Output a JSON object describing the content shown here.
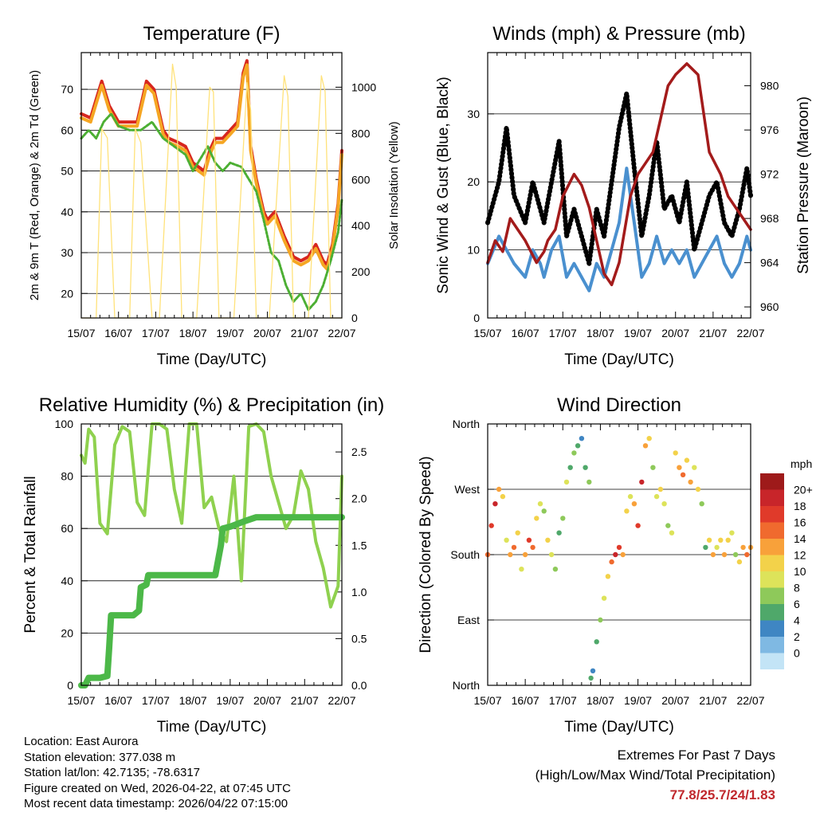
{
  "info": {
    "location": "Location: East Aurora",
    "elevation": "Station elevation: 377.038 m",
    "latlon": "Station lat/lon: 42.7135; -78.6317",
    "created": "Figure created on Wed, 2026-04-22, at 07:45 UTC",
    "recent": "Most recent data timestamp: 2026/04/22 07:15:00"
  },
  "extremes": {
    "title": "Extremes For Past 7 Days",
    "subtitle": "(High/Low/Max Wind/Total Precipitation)",
    "values": "77.8/25.7/24/1.83"
  },
  "colors": {
    "temp_red": "#d7261e",
    "temp_orange": "#f5a623",
    "dewpoint_green": "#4caf33",
    "solar_yellow": "#ffe27a",
    "wind_blue": "#4a90cf",
    "gust_black": "#000000",
    "pressure_maroon": "#a31b1b",
    "rh_lightgreen": "#8fd14f",
    "precip_green": "#4cb848"
  },
  "chart_data": [
    {
      "id": "temperature",
      "type": "line",
      "title": "Temperature (F)",
      "xlabel": "Time (Day/UTC)",
      "ylabel": "2m & 9m T (Red, Orange) & 2m Td (Green)",
      "y2label": "Solar Insolation (Yellow)",
      "x_ticks": [
        "15/07",
        "16/07",
        "17/07",
        "18/07",
        "19/07",
        "20/07",
        "21/07",
        "22/07"
      ],
      "xlim": [
        0,
        7
      ],
      "ylim": [
        14,
        79
      ],
      "y_ticks": [
        20,
        30,
        40,
        50,
        60,
        70
      ],
      "y2lim": [
        0,
        1150
      ],
      "y2_ticks": [
        0,
        200,
        400,
        600,
        800,
        1000
      ],
      "series": [
        {
          "name": "2m T",
          "color": "#d7261e",
          "x": [
            0,
            0.25,
            0.45,
            0.55,
            0.75,
            1,
            1.25,
            1.5,
            1.75,
            1.95,
            2.2,
            2.35,
            2.6,
            2.8,
            3,
            3.3,
            3.45,
            3.6,
            3.8,
            4,
            4.2,
            4.35,
            4.45,
            4.55,
            4.7,
            4.9,
            5,
            5.2,
            5.45,
            5.7,
            5.9,
            6.1,
            6.3,
            6.5,
            6.6,
            6.75,
            6.9,
            7
          ],
          "y": [
            64,
            63,
            69,
            72,
            66,
            62,
            62,
            62,
            72,
            70,
            60,
            58,
            57,
            56,
            52,
            50,
            55,
            58,
            58,
            60,
            62,
            74,
            77,
            56,
            48,
            40,
            38,
            40,
            34,
            29,
            28,
            29,
            32,
            28,
            27,
            32,
            42,
            55
          ]
        },
        {
          "name": "9m T",
          "color": "#f5a623",
          "x": [
            0,
            0.25,
            0.45,
            0.55,
            0.75,
            1,
            1.25,
            1.5,
            1.75,
            1.95,
            2.2,
            2.35,
            2.6,
            2.8,
            3,
            3.3,
            3.45,
            3.6,
            3.8,
            4,
            4.2,
            4.35,
            4.45,
            4.55,
            4.7,
            4.9,
            5,
            5.2,
            5.45,
            5.7,
            5.9,
            6.1,
            6.3,
            6.5,
            6.6,
            6.75,
            6.9,
            7
          ],
          "y": [
            63,
            62,
            68,
            71,
            65,
            61,
            61,
            61,
            71,
            69,
            59,
            57,
            56,
            55,
            51,
            49,
            54,
            57,
            57,
            59,
            61,
            73,
            76,
            55,
            47,
            39,
            37,
            39,
            33,
            28,
            27,
            28,
            31,
            27,
            26,
            31,
            41,
            54
          ]
        },
        {
          "name": "2m Td",
          "color": "#4caf33",
          "x": [
            0,
            0.2,
            0.4,
            0.6,
            0.8,
            1,
            1.3,
            1.6,
            1.9,
            2.2,
            2.5,
            2.8,
            3,
            3.2,
            3.4,
            3.6,
            3.8,
            4.0,
            4.3,
            4.5,
            4.7,
            4.9,
            5.1,
            5.3,
            5.5,
            5.7,
            5.9,
            6.1,
            6.3,
            6.5,
            6.7,
            6.9,
            7
          ],
          "y": [
            58,
            60,
            58,
            62,
            64,
            61,
            60,
            60,
            62,
            58,
            56,
            54,
            50,
            53,
            56,
            52,
            50,
            52,
            51,
            48,
            45,
            38,
            30,
            28,
            22,
            18,
            20,
            16,
            18,
            22,
            28,
            35,
            43
          ]
        },
        {
          "name": "Solar Insolation",
          "color": "#ffe27a",
          "axis": "y2",
          "x": [
            0,
            0.4,
            0.55,
            0.7,
            0.9,
            1.3,
            1.45,
            1.6,
            1.9,
            2.1,
            2.45,
            2.55,
            2.7,
            2.9,
            3.1,
            3.45,
            3.55,
            3.7,
            3.9,
            4.1,
            4.45,
            4.55,
            4.7,
            4.9,
            5.05,
            5.45,
            5.55,
            5.7,
            5.9,
            6.1,
            6.45,
            6.55,
            6.7,
            6.9,
            7
          ],
          "y": [
            0,
            0,
            820,
            780,
            0,
            0,
            820,
            760,
            0,
            0,
            1100,
            1000,
            0,
            0,
            0,
            1000,
            980,
            0,
            0,
            0,
            1020,
            900,
            0,
            0,
            0,
            1050,
            960,
            0,
            0,
            0,
            1050,
            980,
            0,
            0,
            0
          ]
        }
      ]
    },
    {
      "id": "winds",
      "type": "line",
      "title": "Winds (mph) & Pressure (mb)",
      "xlabel": "Time (Day/UTC)",
      "ylabel": "Sonic Wind & Gust (Blue, Black)",
      "y2label": "Station Pressure (Maroon)",
      "x_ticks": [
        "15/07",
        "16/07",
        "17/07",
        "18/07",
        "19/07",
        "20/07",
        "21/07",
        "22/07"
      ],
      "xlim": [
        0,
        7
      ],
      "ylim": [
        0,
        39
      ],
      "y_ticks": [
        0,
        10,
        20,
        30
      ],
      "y2lim": [
        959,
        983
      ],
      "y2_ticks": [
        960,
        964,
        968,
        972,
        976,
        980
      ],
      "series": [
        {
          "name": "Gust",
          "color": "#000000",
          "x": [
            0,
            0.3,
            0.5,
            0.7,
            1,
            1.2,
            1.4,
            1.5,
            1.7,
            1.9,
            2.1,
            2.3,
            2.5,
            2.7,
            2.9,
            3.1,
            3.3,
            3.5,
            3.7,
            3.9,
            4.1,
            4.3,
            4.5,
            4.7,
            4.9,
            5.1,
            5.3,
            5.5,
            5.7,
            5.9,
            6.1,
            6.3,
            6.5,
            6.7,
            6.9,
            7
          ],
          "y": [
            14,
            20,
            28,
            18,
            14,
            20,
            16,
            14,
            20,
            26,
            12,
            16,
            12,
            8,
            16,
            12,
            20,
            28,
            33,
            22,
            12,
            18,
            26,
            16,
            18,
            14,
            20,
            10,
            14,
            18,
            20,
            14,
            12,
            16,
            22,
            18
          ]
        },
        {
          "name": "Wind",
          "color": "#4a90cf",
          "x": [
            0,
            0.3,
            0.5,
            0.7,
            1,
            1.2,
            1.4,
            1.5,
            1.7,
            1.9,
            2.1,
            2.3,
            2.5,
            2.7,
            2.9,
            3.1,
            3.3,
            3.5,
            3.7,
            3.9,
            4.1,
            4.3,
            4.5,
            4.7,
            4.9,
            5.1,
            5.3,
            5.5,
            5.7,
            5.9,
            6.1,
            6.3,
            6.5,
            6.7,
            6.9,
            7
          ],
          "y": [
            8,
            12,
            10,
            8,
            6,
            10,
            8,
            6,
            10,
            12,
            6,
            8,
            6,
            4,
            8,
            6,
            10,
            14,
            22,
            14,
            6,
            8,
            12,
            8,
            10,
            8,
            10,
            6,
            8,
            10,
            12,
            8,
            6,
            8,
            12,
            10
          ]
        },
        {
          "name": "Pressure",
          "color": "#a31b1b",
          "axis": "y2",
          "x": [
            0,
            0.2,
            0.4,
            0.6,
            0.8,
            1,
            1.3,
            1.5,
            1.6,
            1.8,
            2.0,
            2.3,
            2.5,
            2.7,
            2.9,
            3.1,
            3.3,
            3.5,
            3.8,
            4.0,
            4.2,
            4.4,
            4.6,
            4.8,
            5.0,
            5.3,
            5.6,
            5.9,
            6.2,
            6.4,
            6.6,
            6.8,
            7
          ],
          "y": [
            964,
            966,
            965,
            968,
            967,
            966,
            964,
            965,
            966,
            967,
            970,
            972,
            971,
            969,
            966,
            963,
            962,
            964,
            970,
            972,
            973,
            974,
            977,
            980,
            981,
            982,
            981,
            974,
            972,
            970,
            969,
            968,
            967
          ]
        }
      ]
    },
    {
      "id": "humidity",
      "type": "line",
      "title": "Relative Humidity (%) & Precipitation (in)",
      "xlabel": "Time (Day/UTC)",
      "ylabel": "Percent & Total Rainfall",
      "x_ticks": [
        "15/07",
        "16/07",
        "17/07",
        "18/07",
        "19/07",
        "20/07",
        "21/07",
        "22/07"
      ],
      "xlim": [
        0,
        7
      ],
      "ylim": [
        0,
        100
      ],
      "y_ticks": [
        0,
        20,
        40,
        60,
        80,
        100
      ],
      "y2lim": [
        0,
        2.8
      ],
      "y2_ticks": [
        0.0,
        0.5,
        1.0,
        1.5,
        2.0,
        2.5
      ],
      "series": [
        {
          "name": "RH",
          "color": "#8fd14f",
          "x": [
            0,
            0.1,
            0.2,
            0.35,
            0.5,
            0.7,
            0.9,
            1.1,
            1.3,
            1.5,
            1.7,
            1.9,
            2.1,
            2.3,
            2.5,
            2.7,
            2.9,
            3.1,
            3.3,
            3.5,
            3.7,
            3.9,
            4.1,
            4.3,
            4.5,
            4.7,
            4.9,
            5.1,
            5.3,
            5.5,
            5.7,
            5.9,
            6.1,
            6.3,
            6.5,
            6.7,
            6.9,
            7
          ],
          "y": [
            88,
            85,
            98,
            95,
            62,
            58,
            92,
            99,
            97,
            70,
            65,
            100,
            100,
            98,
            75,
            62,
            100,
            100,
            68,
            72,
            60,
            55,
            80,
            40,
            99,
            100,
            97,
            80,
            70,
            60,
            65,
            82,
            75,
            55,
            45,
            30,
            38,
            80
          ]
        },
        {
          "name": "Total Precipitation",
          "color": "#4cb848",
          "axis": "y2",
          "x": [
            0,
            0.1,
            0.2,
            0.5,
            0.7,
            0.75,
            0.8,
            1.0,
            1.4,
            1.55,
            1.6,
            1.75,
            1.8,
            2.0,
            2.5,
            3.0,
            3.6,
            3.75,
            3.8,
            4.0,
            4.4,
            4.7,
            5.0,
            5.5,
            6.0,
            6.5,
            7
          ],
          "y": [
            0,
            0,
            0.08,
            0.08,
            0.1,
            0.4,
            0.75,
            0.75,
            0.75,
            0.8,
            1.05,
            1.08,
            1.18,
            1.18,
            1.18,
            1.18,
            1.18,
            1.5,
            1.68,
            1.7,
            1.76,
            1.8,
            1.8,
            1.8,
            1.8,
            1.8,
            1.8
          ]
        }
      ]
    },
    {
      "id": "direction",
      "type": "scatter",
      "title": "Wind Direction",
      "xlabel": "Time (Day/UTC)",
      "ylabel": "Direction (Colored By Speed)",
      "x_ticks": [
        "15/07",
        "16/07",
        "17/07",
        "18/07",
        "19/07",
        "20/07",
        "21/07",
        "22/07"
      ],
      "xlim": [
        0,
        7
      ],
      "ylim": [
        0,
        360
      ],
      "y_tick_values": [
        0,
        90,
        180,
        270,
        360
      ],
      "y_tick_labels": [
        "North",
        "East",
        "South",
        "West",
        "North"
      ],
      "colorbar": {
        "title": "mph",
        "labels": [
          "20+",
          "18",
          "16",
          "14",
          "12",
          "10",
          "8",
          "6",
          "4",
          "2",
          "0"
        ],
        "colors": [
          "#9e1a1a",
          "#c8252a",
          "#e03a2a",
          "#f06a2e",
          "#f8a13a",
          "#f3d24a",
          "#dde35a",
          "#8ec95a",
          "#4fa86a",
          "#3f86c3",
          "#7fb9e3",
          "#c3e4f6"
        ]
      },
      "points": {
        "x": [
          0.0,
          0.1,
          0.2,
          0.3,
          0.4,
          0.5,
          0.6,
          0.7,
          0.8,
          0.9,
          1.0,
          1.1,
          1.2,
          1.3,
          1.4,
          1.5,
          1.6,
          1.7,
          1.8,
          1.9,
          2.0,
          2.1,
          2.2,
          2.3,
          2.4,
          2.5,
          2.6,
          2.7,
          2.75,
          2.8,
          2.9,
          3.0,
          3.1,
          3.2,
          3.3,
          3.4,
          3.5,
          3.6,
          3.7,
          3.8,
          3.9,
          4.0,
          4.1,
          4.2,
          4.3,
          4.4,
          4.5,
          4.6,
          4.7,
          4.8,
          4.9,
          5.0,
          5.1,
          5.2,
          5.3,
          5.4,
          5.5,
          5.6,
          5.7,
          5.8,
          5.9,
          6.0,
          6.1,
          6.2,
          6.3,
          6.4,
          6.5,
          6.6,
          6.7,
          6.8,
          6.9,
          7.0
        ],
        "y": [
          180,
          220,
          250,
          270,
          260,
          200,
          180,
          190,
          210,
          160,
          180,
          200,
          190,
          230,
          250,
          240,
          200,
          180,
          160,
          210,
          230,
          280,
          300,
          320,
          330,
          340,
          300,
          280,
          10,
          20,
          60,
          90,
          120,
          150,
          170,
          180,
          190,
          180,
          240,
          260,
          250,
          220,
          280,
          330,
          340,
          300,
          260,
          270,
          250,
          220,
          210,
          320,
          300,
          290,
          310,
          280,
          300,
          270,
          250,
          190,
          200,
          180,
          190,
          200,
          180,
          200,
          210,
          180,
          170,
          190,
          180,
          190
        ],
        "speed": [
          14,
          16,
          18,
          12,
          10,
          8,
          12,
          14,
          10,
          8,
          12,
          16,
          14,
          10,
          8,
          6,
          10,
          8,
          6,
          4,
          6,
          8,
          4,
          6,
          4,
          2,
          4,
          6,
          4,
          2,
          4,
          6,
          8,
          10,
          14,
          18,
          16,
          12,
          10,
          8,
          12,
          16,
          18,
          12,
          10,
          6,
          8,
          10,
          8,
          6,
          8,
          10,
          12,
          14,
          10,
          12,
          8,
          10,
          6,
          4,
          10,
          12,
          8,
          10,
          12,
          10,
          8,
          6,
          10,
          12,
          14,
          12
        ]
      }
    }
  ]
}
